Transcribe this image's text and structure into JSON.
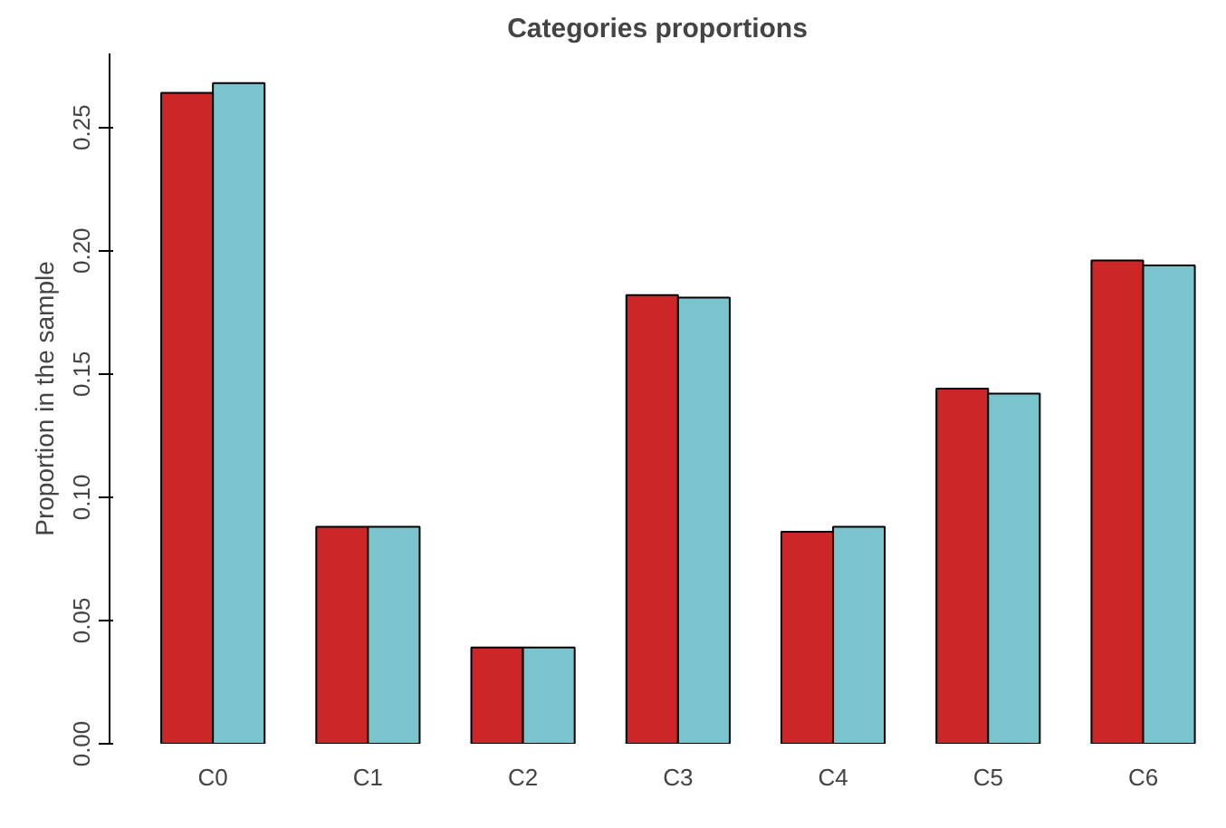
{
  "chart_data": {
    "type": "bar",
    "title": "Categories proportions",
    "ylabel": "Proportion in the sample",
    "categories": [
      "C0",
      "C1",
      "C2",
      "C3",
      "C4",
      "C5",
      "C6"
    ],
    "series": [
      {
        "color": "#cd2626",
        "values": [
          0.264,
          0.088,
          0.039,
          0.182,
          0.086,
          0.144,
          0.196
        ]
      },
      {
        "color": "#7ac5cd",
        "values": [
          0.268,
          0.088,
          0.039,
          0.181,
          0.088,
          0.142,
          0.194
        ]
      }
    ],
    "ylim": [
      0,
      0.28
    ],
    "yticks": [
      {
        "value": 0,
        "label": "0.00"
      },
      {
        "value": 0.05,
        "label": "0.05"
      },
      {
        "value": 0.1,
        "label": "0.10"
      },
      {
        "value": 0.15,
        "label": "0.15"
      },
      {
        "value": 0.2,
        "label": "0.20"
      },
      {
        "value": 0.25,
        "label": "0.25"
      }
    ],
    "grid": false
  }
}
